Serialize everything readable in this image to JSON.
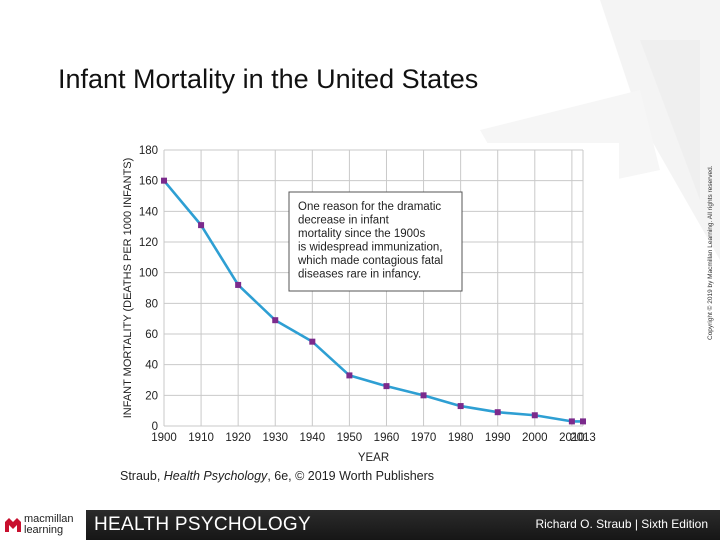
{
  "slide": {
    "title": "Infant Mortality in the United States"
  },
  "chart_data": {
    "type": "line",
    "title": "",
    "xlabel": "YEAR",
    "ylabel": "INFANT MORTALITY (DEATHS PER 1000 INFANTS)",
    "x": [
      1900,
      1910,
      1920,
      1930,
      1940,
      1950,
      1960,
      1970,
      1980,
      1990,
      2000,
      2010,
      2013
    ],
    "x_tick_labels": [
      "1900",
      "1910",
      "1920",
      "1930",
      "1940",
      "1950",
      "1960",
      "1970",
      "1980",
      "1990",
      "2000",
      "2010",
      "2013"
    ],
    "series": [
      {
        "values": [
          160,
          131,
          92,
          69,
          55,
          33,
          26,
          20,
          13,
          9,
          7,
          3,
          3
        ]
      }
    ],
    "y_ticks": [
      0,
      20,
      40,
      60,
      80,
      100,
      120,
      140,
      160,
      180
    ],
    "ylim": [
      0,
      180
    ],
    "grid": true,
    "annotation": "One reason for the dramatic decrease in infant mortality since the 1900s is widespread immunization, which made contagious fatal diseases rare in infancy.",
    "line_color": "#2e9fd3",
    "marker_color": "#7b2a8c",
    "grid_color": "#c9c9c9"
  },
  "credit": {
    "author": "Straub, ",
    "book": "Health Psychology",
    "rest": ", 6e, © 2019 Worth Publishers"
  },
  "copyright_vertical": "Copyright © 2019 by Macmillan Learning. All rights reserved.",
  "footer": {
    "brand_line1": "macmillan",
    "brand_line2": "learning",
    "book_title": "HEALTH PSYCHOLOGY",
    "author_edition": "Richard O. Straub | Sixth Edition",
    "brand_color": "#c8102e"
  }
}
